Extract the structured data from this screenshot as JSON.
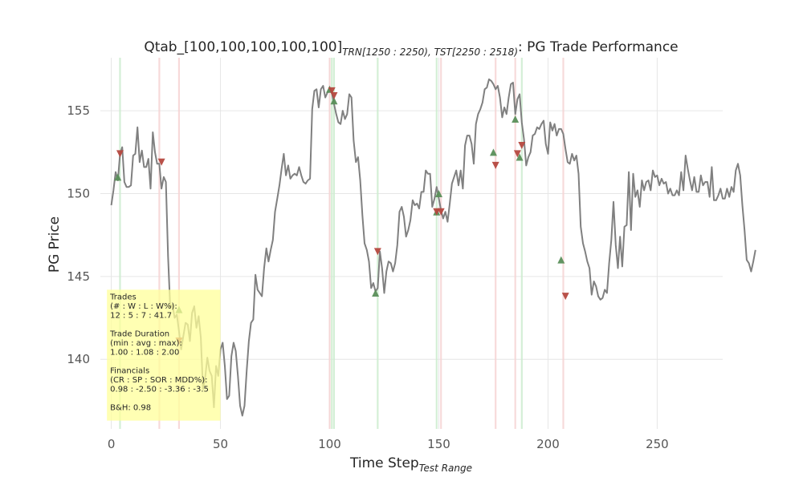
{
  "chart_data": {
    "type": "line",
    "title": "Qtab_[100,100,100,100,100]",
    "title_sub": "TRN[1250 : 2250), TST[2250 : 2518)",
    "title_suffix": ": PG Trade Performance",
    "xlabel": "Time Step",
    "xlabel_sub": "Test Range",
    "ylabel": "PG Price",
    "xlim": [
      -5,
      280
    ],
    "ylim": [
      135.8,
      158.2
    ],
    "x_ticks": [
      0,
      50,
      100,
      150,
      200,
      250
    ],
    "y_ticks": [
      140,
      145,
      150,
      155
    ],
    "grid": true,
    "colors": {
      "price": "#808080",
      "buy": "#5a8f5a",
      "sell": "#b5483f",
      "buy_band": "#cdeccf",
      "sell_band": "#f6d3d3",
      "info_box": "#ffff99",
      "grid": "#e6e6e6"
    },
    "series": [
      {
        "values": [
          149.3,
          150.2,
          151.3,
          150.8,
          152.4,
          152.8,
          150.7,
          150.4,
          150.4,
          150.5,
          152.3,
          152.4,
          154.0,
          151.9,
          152.6,
          151.6,
          151.6,
          152.1,
          150.3,
          153.7,
          152.5,
          151.8,
          151.8,
          150.3,
          151.0,
          150.7,
          146.2,
          143.1,
          143.3,
          142.5,
          142.7,
          141.7,
          140.6,
          141.4,
          142.2,
          142.1,
          141.1,
          142.8,
          143.2,
          141.9,
          142.6,
          141.3,
          138.2,
          138.9,
          140.1,
          139.3,
          139.0,
          137.1,
          139.6,
          139.0,
          140.6,
          141.0,
          139.6,
          137.6,
          137.8,
          140.2,
          141.0,
          140.5,
          139.0,
          137.2,
          136.6,
          137.2,
          139.3,
          141.1,
          142.2,
          142.4,
          145.1,
          144.2,
          144.0,
          143.8,
          145.5,
          146.7,
          145.9,
          146.6,
          147.2,
          148.9,
          149.7,
          150.5,
          151.5,
          152.4,
          151.1,
          151.7,
          150.9,
          151.1,
          151.2,
          151.1,
          151.6,
          151.1,
          150.7,
          150.6,
          150.8,
          150.9,
          155.1,
          156.2,
          156.3,
          155.2,
          156.3,
          156.5,
          155.8,
          156.1,
          156.2,
          156.1,
          155.4,
          154.8,
          154.3,
          154.2,
          155.0,
          154.5,
          154.8,
          156.0,
          155.8,
          153.2,
          151.9,
          152.2,
          150.8,
          148.7,
          147.0,
          146.6,
          145.9,
          144.3,
          144.6,
          144.1,
          144.3,
          146.5,
          145.5,
          144.0,
          145.3,
          145.9,
          145.8,
          145.3,
          145.8,
          146.9,
          148.9,
          149.2,
          148.6,
          147.4,
          147.8,
          148.4,
          149.6,
          149.3,
          149.4,
          149.1,
          150.1,
          150.1,
          151.4,
          151.2,
          151.2,
          149.2,
          149.7,
          150.4,
          149.7,
          149.0,
          148.5,
          148.9,
          148.3,
          149.4,
          150.6,
          151.0,
          151.4,
          150.5,
          151.4,
          150.3,
          152.9,
          153.5,
          153.5,
          153.0,
          151.8,
          154.2,
          154.8,
          155.1,
          155.5,
          156.3,
          156.4,
          156.9,
          156.8,
          156.6,
          156.3,
          156.5,
          155.8,
          154.6,
          155.2,
          154.8,
          155.8,
          156.6,
          156.7,
          154.8,
          155.7,
          156.0,
          154.3,
          153.3,
          151.7,
          152.2,
          152.5,
          153.5,
          153.6,
          154.0,
          153.9,
          154.2,
          154.4,
          153.0,
          152.4,
          154.3,
          153.8,
          154.2,
          153.5,
          153.9,
          153.9,
          153.6,
          152.7,
          151.9,
          151.8,
          152.4,
          152.0,
          152.3,
          151.2,
          148.0,
          147.0,
          146.5,
          145.9,
          145.5,
          143.9,
          144.7,
          144.4,
          143.8,
          143.6,
          143.7,
          144.2,
          144.0,
          145.8,
          147.2,
          149.5,
          146.9,
          145.5,
          147.4,
          145.6,
          148.0,
          148.1,
          151.3,
          147.8,
          151.2,
          149.8,
          150.2,
          149.2,
          150.8,
          150.2,
          150.7,
          150.8,
          150.2,
          151.4,
          151.0,
          151.1,
          150.5,
          150.9,
          150.6,
          150.7,
          150.0,
          150.3,
          149.9,
          149.9,
          150.2,
          149.9,
          151.3,
          150.2,
          152.3,
          151.5,
          150.8,
          150.2,
          151.0,
          150.1,
          150.1,
          151.1,
          150.5,
          150.7,
          150.7,
          149.8,
          151.6,
          149.6,
          149.6,
          149.9,
          150.3,
          149.7,
          149.7,
          150.3,
          149.8,
          150.4,
          150.1,
          151.4,
          151.8,
          151.1,
          149.3,
          147.8,
          146.0,
          145.8,
          145.3,
          145.9,
          146.6
        ]
      }
    ],
    "buy_markers": [
      {
        "x": 3,
        "y": 151.0
      },
      {
        "x": 31,
        "y": 143.0
      },
      {
        "x": 100,
        "y": 156.3
      },
      {
        "x": 102,
        "y": 155.6
      },
      {
        "x": 121,
        "y": 144.0
      },
      {
        "x": 149,
        "y": 148.9
      },
      {
        "x": 150,
        "y": 150.0
      },
      {
        "x": 175,
        "y": 152.5
      },
      {
        "x": 185,
        "y": 154.5
      },
      {
        "x": 187,
        "y": 152.2
      },
      {
        "x": 206,
        "y": 146.0
      }
    ],
    "sell_markers": [
      {
        "x": 4,
        "y": 152.4
      },
      {
        "x": 23,
        "y": 151.9
      },
      {
        "x": 31,
        "y": 141.1
      },
      {
        "x": 101,
        "y": 156.2
      },
      {
        "x": 102,
        "y": 155.9
      },
      {
        "x": 122,
        "y": 146.5
      },
      {
        "x": 149,
        "y": 148.9
      },
      {
        "x": 151,
        "y": 148.9
      },
      {
        "x": 176,
        "y": 151.7
      },
      {
        "x": 186,
        "y": 152.4
      },
      {
        "x": 188,
        "y": 152.9
      },
      {
        "x": 208,
        "y": 143.8
      }
    ],
    "buy_bands": [
      4,
      101,
      102,
      122,
      149,
      188
    ],
    "sell_bands": [
      22,
      31,
      100,
      151,
      176,
      185,
      207
    ],
    "info_box": {
      "x_range": [
        -2,
        50
      ],
      "y_range": [
        136.3,
        144.2
      ],
      "lines": [
        "Trades",
        "(# : W : L : W%):",
        "12 : 5 : 7 : 41.7",
        "",
        "Trade Duration",
        "(min : avg : max):",
        "1.00 : 1.08 : 2.00",
        "",
        "Financials",
        "(CR : SP : SOR : MDD%):",
        "0.98 : -2.50 : -3.36 : -3.5",
        "",
        "B&H: 0.98"
      ]
    }
  }
}
